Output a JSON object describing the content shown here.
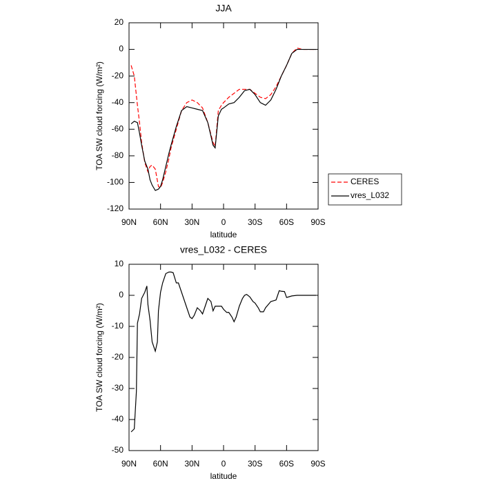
{
  "chart_data": [
    {
      "type": "line",
      "title": "JJA",
      "xlabel": "latitude",
      "ylabel": "TOA SW cloud forcing (W/m²)",
      "x": [
        88,
        85,
        82,
        80,
        78,
        75,
        72,
        70,
        68,
        65,
        62,
        60,
        58,
        55,
        52,
        50,
        45,
        40,
        35,
        30,
        25,
        20,
        15,
        10,
        8,
        5,
        2,
        0,
        -5,
        -10,
        -15,
        -20,
        -25,
        -30,
        -35,
        -40,
        -45,
        -50,
        -55,
        -60,
        -65,
        -70,
        -75,
        -80,
        -85,
        -88
      ],
      "series": [
        {
          "name": "CERES",
          "color": "#ff0000",
          "line_style": "dashed",
          "values": [
            -12,
            -20,
            -42,
            -55,
            -70,
            -85,
            -92,
            -88,
            -87,
            -90,
            -103,
            -104,
            -100,
            -92,
            -82,
            -74,
            -60,
            -46,
            -40,
            -38,
            -40,
            -44,
            -55,
            -70,
            -73,
            -46,
            -42,
            -40,
            -36,
            -33,
            -30,
            -30,
            -30,
            -33,
            -36,
            -37,
            -34,
            -28,
            -20,
            -12,
            -3,
            1,
            0,
            0,
            0,
            0
          ]
        },
        {
          "name": "vres_L032",
          "color": "#000000",
          "line_style": "solid",
          "values": [
            -56,
            -54,
            -55,
            -63,
            -72,
            -84,
            -90,
            -98,
            -102,
            -106,
            -105,
            -103,
            -98,
            -88,
            -78,
            -72,
            -58,
            -46,
            -43,
            -44,
            -45,
            -46,
            -55,
            -72,
            -74,
            -50,
            -45,
            -44,
            -41,
            -40,
            -36,
            -31,
            -30,
            -34,
            -40,
            -42,
            -38,
            -30,
            -20,
            -12,
            -3,
            0,
            0,
            0,
            0,
            0
          ]
        }
      ],
      "xlim": [
        90,
        -90
      ],
      "xticks": [
        {
          "value": 90,
          "label": "90N"
        },
        {
          "value": 60,
          "label": "60N"
        },
        {
          "value": 30,
          "label": "30N"
        },
        0,
        {
          "value": -30,
          "label": "30S"
        },
        {
          "value": -60,
          "label": "60S"
        },
        {
          "value": -90,
          "label": "90S"
        }
      ],
      "ylim": [
        -120,
        20
      ],
      "yticks": [
        -120,
        -100,
        -80,
        -60,
        -40,
        -20,
        0,
        20
      ],
      "legend": "right"
    },
    {
      "type": "line",
      "title": "vres_L032 - CERES",
      "xlabel": "latitude",
      "ylabel": "TOA SW cloud forcing (W/m²)",
      "x": [
        88,
        85,
        83,
        82,
        80,
        78,
        75,
        73,
        72,
        70,
        68,
        65,
        63,
        62,
        60,
        58,
        55,
        52,
        50,
        48,
        45,
        43,
        40,
        38,
        35,
        32,
        30,
        28,
        25,
        22,
        20,
        18,
        15,
        12,
        10,
        8,
        5,
        2,
        0,
        -3,
        -5,
        -8,
        -10,
        -12,
        -15,
        -18,
        -20,
        -22,
        -25,
        -28,
        -30,
        -33,
        -35,
        -38,
        -40,
        -45,
        -48,
        -50,
        -53,
        -55,
        -58,
        -60,
        -62,
        -65,
        -70,
        -75,
        -80,
        -85,
        -88
      ],
      "values": [
        -44,
        -43,
        -31,
        -9,
        -6,
        -1,
        1,
        3,
        -3,
        -8,
        -15,
        -18,
        -15,
        -5,
        1,
        4,
        7,
        7.5,
        7.5,
        7.3,
        4,
        4,
        1,
        -1,
        -4,
        -7,
        -7.5,
        -6.5,
        -4,
        -5,
        -6,
        -4,
        -1,
        -2,
        -5,
        -3.5,
        -3.5,
        -3.5,
        -4.5,
        -5.5,
        -5.5,
        -7,
        -8.5,
        -7,
        -3.5,
        -1,
        0,
        0.3,
        -0.5,
        -2,
        -2.5,
        -4,
        -5.3,
        -5.3,
        -4,
        -2,
        -1.7,
        -1.5,
        1.5,
        1.3,
        1.2,
        -0.7,
        -0.5,
        -0.2,
        0,
        0,
        0,
        0,
        0
      ],
      "color": "#000000",
      "xlim": [
        90,
        -90
      ],
      "xticks": [
        {
          "value": 90,
          "label": "90N"
        },
        {
          "value": 60,
          "label": "60N"
        },
        {
          "value": 30,
          "label": "30N"
        },
        0,
        {
          "value": -30,
          "label": "30S"
        },
        {
          "value": -60,
          "label": "60S"
        },
        {
          "value": -90,
          "label": "90S"
        }
      ],
      "ylim": [
        -50,
        10
      ],
      "yticks": [
        -50,
        -40,
        -30,
        -20,
        -10,
        0,
        10
      ]
    }
  ]
}
